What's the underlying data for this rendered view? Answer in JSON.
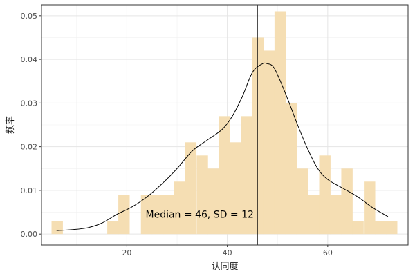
{
  "chart_data": {
    "type": "bar",
    "subtype": "histogram-with-density",
    "xlabel": "认同度",
    "ylabel": "频率",
    "xlim": [
      3,
      76
    ],
    "ylim": [
      -0.0025,
      0.0525
    ],
    "x_ticks": [
      20,
      40,
      60
    ],
    "y_ticks": [
      0,
      0.01,
      0.02,
      0.03,
      0.04,
      0.05
    ],
    "y_tick_labels": [
      "0.00",
      "0.01",
      "0.02",
      "0.03",
      "0.04",
      "0.05"
    ],
    "grid": true,
    "bar_color": "#f5deb3",
    "line_color": "#000000",
    "bin_width": 2.22,
    "bins": [
      {
        "start": 5.0,
        "value": 0.003
      },
      {
        "start": 7.2,
        "value": 0.0
      },
      {
        "start": 9.4,
        "value": 0.0
      },
      {
        "start": 11.7,
        "value": 0.0
      },
      {
        "start": 13.9,
        "value": 0.0
      },
      {
        "start": 16.1,
        "value": 0.003
      },
      {
        "start": 18.3,
        "value": 0.009
      },
      {
        "start": 20.5,
        "value": 0.0
      },
      {
        "start": 22.8,
        "value": 0.009
      },
      {
        "start": 25.0,
        "value": 0.009
      },
      {
        "start": 27.2,
        "value": 0.009
      },
      {
        "start": 29.4,
        "value": 0.012
      },
      {
        "start": 31.6,
        "value": 0.021
      },
      {
        "start": 33.9,
        "value": 0.018
      },
      {
        "start": 36.1,
        "value": 0.015
      },
      {
        "start": 38.3,
        "value": 0.027
      },
      {
        "start": 40.5,
        "value": 0.021
      },
      {
        "start": 42.7,
        "value": 0.027
      },
      {
        "start": 45.0,
        "value": 0.045
      },
      {
        "start": 47.2,
        "value": 0.042
      },
      {
        "start": 49.4,
        "value": 0.051
      },
      {
        "start": 51.6,
        "value": 0.03
      },
      {
        "start": 53.8,
        "value": 0.015
      },
      {
        "start": 56.1,
        "value": 0.009
      },
      {
        "start": 58.3,
        "value": 0.018
      },
      {
        "start": 60.5,
        "value": 0.009
      },
      {
        "start": 62.7,
        "value": 0.015
      },
      {
        "start": 64.9,
        "value": 0.003
      },
      {
        "start": 67.2,
        "value": 0.012
      },
      {
        "start": 69.4,
        "value": 0.003
      },
      {
        "start": 71.6,
        "value": 0.003
      }
    ],
    "density": {
      "x": [
        6,
        9,
        12,
        15,
        18,
        21,
        24,
        27,
        30,
        33,
        36,
        39,
        41,
        43,
        45,
        47,
        48,
        49,
        50,
        52,
        54,
        56,
        58,
        60,
        63,
        66,
        69,
        72
      ],
      "y": [
        0.0008,
        0.001,
        0.0014,
        0.0025,
        0.0045,
        0.0062,
        0.0085,
        0.0115,
        0.015,
        0.019,
        0.0215,
        0.024,
        0.027,
        0.0315,
        0.037,
        0.039,
        0.039,
        0.0385,
        0.0365,
        0.031,
        0.025,
        0.0195,
        0.015,
        0.0125,
        0.0105,
        0.0085,
        0.006,
        0.004
      ]
    },
    "median_line": 46,
    "annotation": {
      "text": "Median = 46, SD = 12",
      "x": 34.5,
      "y": 0.0045
    }
  }
}
